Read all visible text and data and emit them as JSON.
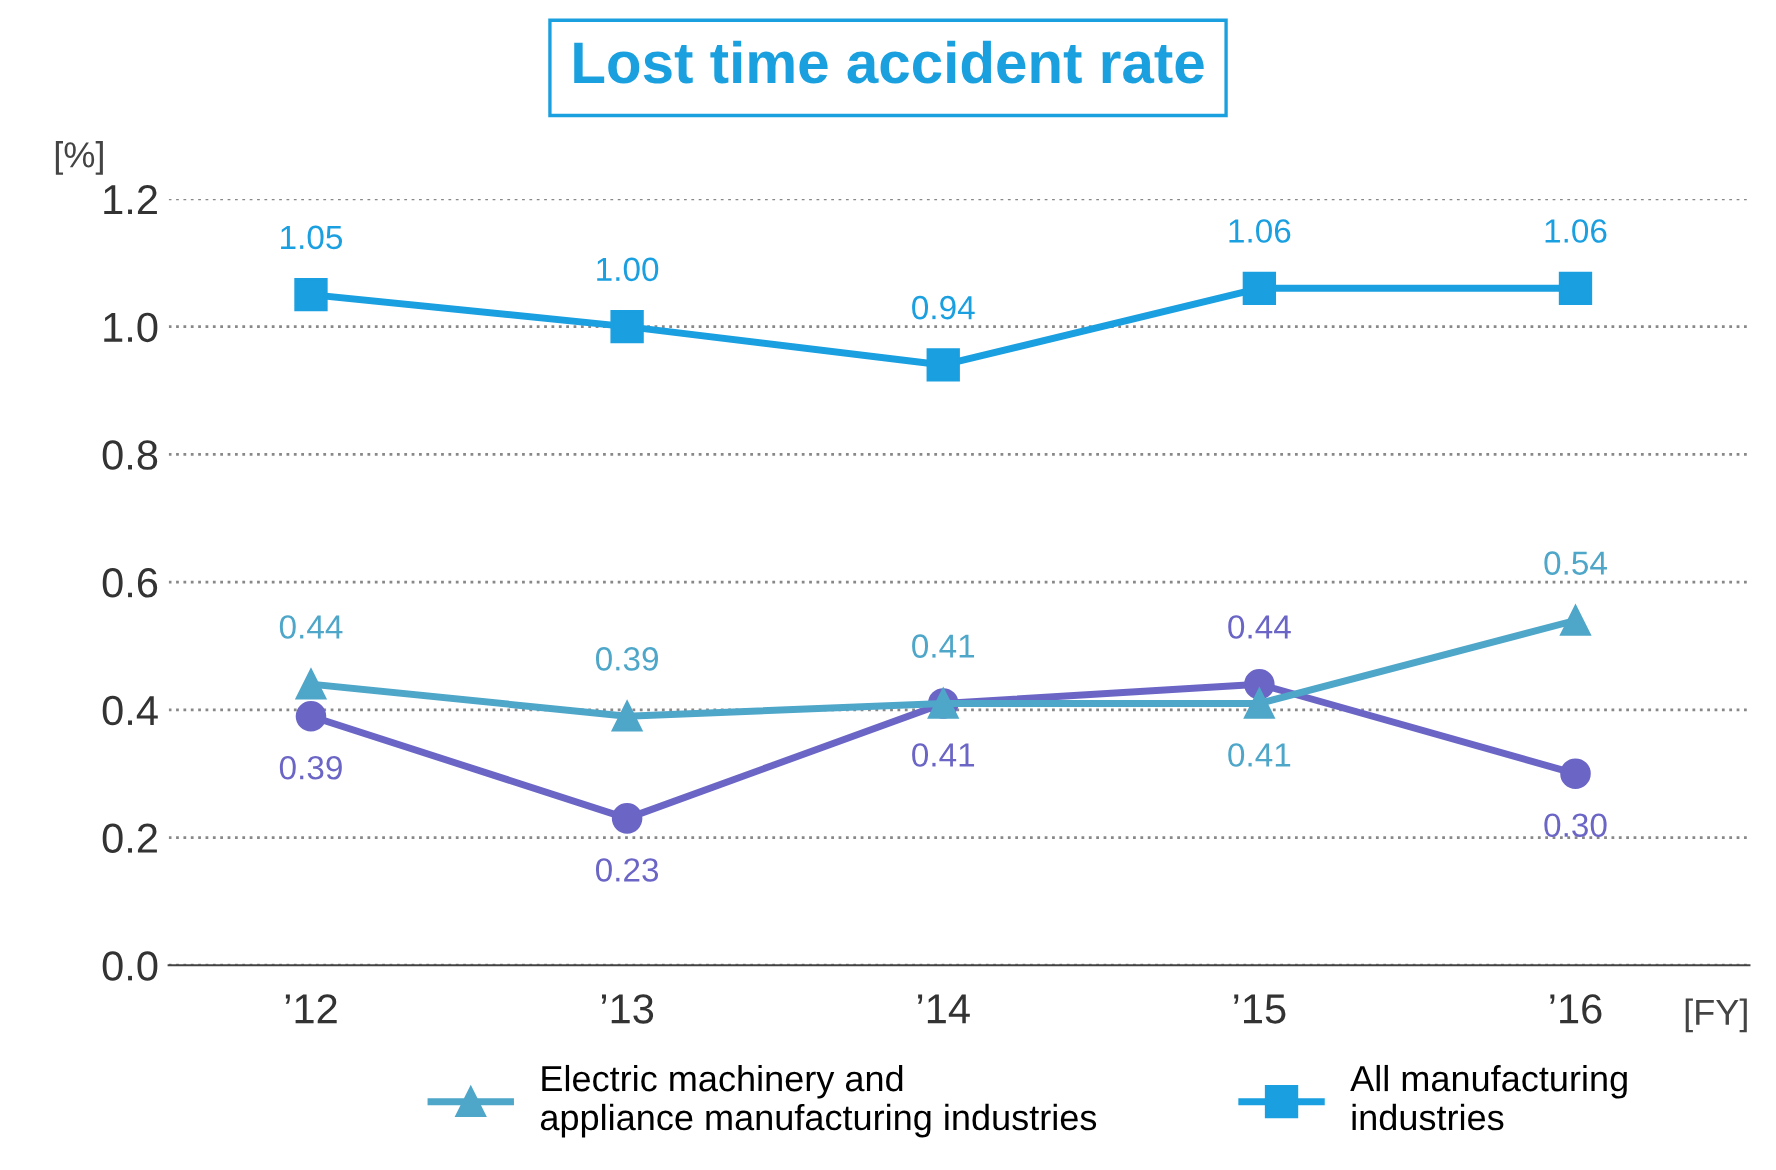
{
  "chart_data": {
    "type": "line",
    "title": "Lost time accident rate",
    "ylabel": "[%]",
    "xlabel": "[FY]",
    "categories": [
      "’12",
      "’13",
      "’14",
      "’15",
      "’16"
    ],
    "series": [
      {
        "color": "#6b66c6",
        "marker": "circle",
        "values": [
          0.39,
          0.23,
          0.41,
          0.44,
          0.3
        ],
        "value_labels": [
          "0.39",
          "0.23",
          "0.41",
          "0.44",
          "0.30"
        ]
      },
      {
        "name": "Electric machinery and\nappliance manufacturing industries",
        "color": "#4ea6c9",
        "marker": "triangle",
        "values": [
          0.44,
          0.39,
          0.41,
          0.41,
          0.54
        ],
        "value_labels": [
          "0.44",
          "0.39",
          "0.41",
          "0.41",
          "0.54"
        ]
      },
      {
        "name": "All manufacturing\nindustries",
        "color": "#1a9fe0",
        "marker": "square",
        "values": [
          1.05,
          1.0,
          0.94,
          1.06,
          1.06
        ],
        "value_labels": [
          "1.05",
          "1.00",
          "0.94",
          "1.06",
          "1.06"
        ]
      }
    ],
    "ylim": [
      0,
      1.2
    ],
    "yticks": [
      {
        "value": 0,
        "label": "0.0"
      },
      {
        "value": 0.2,
        "label": "0.2"
      },
      {
        "value": 0.4,
        "label": "0.4"
      },
      {
        "value": 0.6,
        "label": "0.6"
      },
      {
        "value": 0.8,
        "label": "0.8"
      },
      {
        "value": 1,
        "label": "1.0"
      },
      {
        "value": 1.2,
        "label": "1.2"
      }
    ],
    "grid": "y",
    "legend": "bottom",
    "line_style": "solid"
  }
}
